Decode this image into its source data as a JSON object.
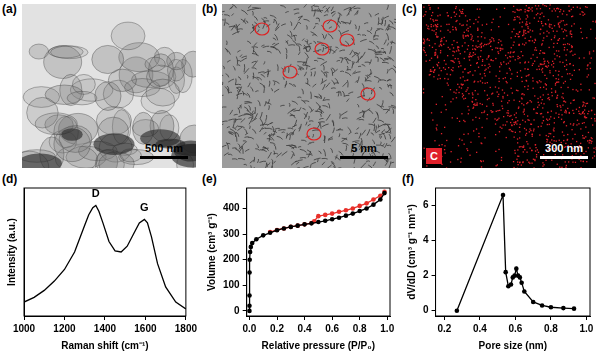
{
  "image_panels": [
    {
      "panel": "(a)",
      "scale_bar": "500 nm"
    },
    {
      "panel": "(b)",
      "scale_bar": "5 nm"
    },
    {
      "panel": "(c)",
      "scale_bar": "300 nm",
      "label": "C"
    }
  ],
  "chart_data": [
    {
      "panel": "(d)",
      "type": "line",
      "x_label": "Raman shift (cm⁻¹)",
      "y_label": "Intensity (a.u.)",
      "x": [
        1000,
        1050,
        1100,
        1150,
        1200,
        1250,
        1300,
        1320,
        1340,
        1355,
        1370,
        1390,
        1420,
        1450,
        1480,
        1510,
        1540,
        1570,
        1595,
        1610,
        1630,
        1660,
        1700,
        1750,
        1800
      ],
      "values": [
        0.12,
        0.16,
        0.22,
        0.3,
        0.4,
        0.55,
        0.78,
        0.87,
        0.93,
        0.95,
        0.9,
        0.8,
        0.64,
        0.56,
        0.55,
        0.6,
        0.7,
        0.8,
        0.83,
        0.8,
        0.68,
        0.45,
        0.25,
        0.12,
        0.06
      ],
      "color": "#000000",
      "marker": "none",
      "line_style": "solid",
      "xlim": [
        1000,
        1800
      ],
      "xticks": [
        1000,
        1200,
        1400,
        1600,
        1800
      ],
      "ylim": [
        0,
        1.1
      ],
      "yticks": [],
      "tick_labels": "x",
      "grid": false,
      "annotations": [
        {
          "text": "D",
          "x": 1355,
          "y": 1.0
        },
        {
          "text": "G",
          "x": 1595,
          "y": 0.88
        }
      ]
    },
    {
      "panel": "(e)",
      "type": "line",
      "x_label": "Relative pressure (P/P₀)",
      "y_label": "Volume (cm³ g⁻¹)",
      "series": [
        {
          "color": "#000000",
          "marker": "circle",
          "x": [
            0.0001,
            0.0003,
            0.0005,
            0.001,
            0.002,
            0.005,
            0.01,
            0.02,
            0.05,
            0.1,
            0.15,
            0.2,
            0.25,
            0.3,
            0.35,
            0.4,
            0.45,
            0.5,
            0.55,
            0.6,
            0.65,
            0.7,
            0.75,
            0.8,
            0.85,
            0.9,
            0.95,
            0.98
          ],
          "values": [
            0,
            20,
            60,
            150,
            200,
            230,
            250,
            265,
            280,
            295,
            305,
            315,
            322,
            328,
            333,
            338,
            342,
            347,
            352,
            358,
            364,
            372,
            380,
            390,
            400,
            415,
            435,
            460
          ]
        },
        {
          "color": "#e8302a",
          "marker": "circle",
          "x": [
            0.98,
            0.95,
            0.9,
            0.85,
            0.8,
            0.75,
            0.7,
            0.65,
            0.6,
            0.55,
            0.5,
            0.47,
            0.45,
            0.4,
            0.35,
            0.3,
            0.25,
            0.2,
            0.15
          ],
          "values": [
            465,
            450,
            435,
            420,
            410,
            400,
            393,
            387,
            380,
            375,
            370,
            350,
            343,
            338,
            333,
            328,
            322,
            316,
            308
          ]
        }
      ],
      "xlim": [
        -0.02,
        1.02
      ],
      "xticks": [
        {
          "value": 0,
          "label": "0.0"
        },
        0.2,
        0.4,
        0.6,
        0.8,
        {
          "value": 1,
          "label": "1.0"
        }
      ],
      "ylim": [
        -20,
        480
      ],
      "yticks": [
        0,
        100,
        200,
        300,
        400
      ],
      "grid": false
    },
    {
      "panel": "(f)",
      "type": "line",
      "x_label": "Pore size (nm)",
      "y_label": "dV/dD (cm³ g⁻¹ nm⁻¹)",
      "x": [
        0.27,
        0.53,
        0.545,
        0.56,
        0.575,
        0.585,
        0.595,
        0.605,
        0.615,
        0.625,
        0.635,
        0.65,
        0.7,
        0.75,
        0.8,
        0.87,
        0.93
      ],
      "values": [
        0,
        6.6,
        2.2,
        1.4,
        1.5,
        1.9,
        2.0,
        2.4,
        2.0,
        1.9,
        1.6,
        1.1,
        0.5,
        0.3,
        0.2,
        0.15,
        0.12
      ],
      "color": "#000000",
      "marker": "circle",
      "line_style": "solid",
      "xlim": [
        0.15,
        1.02
      ],
      "xticks": [
        0.2,
        0.4,
        0.6,
        0.8,
        {
          "value": 1,
          "label": "1.0"
        }
      ],
      "ylim": [
        -0.3,
        7
      ],
      "yticks": [
        0,
        2,
        4,
        6
      ],
      "grid": false
    }
  ]
}
